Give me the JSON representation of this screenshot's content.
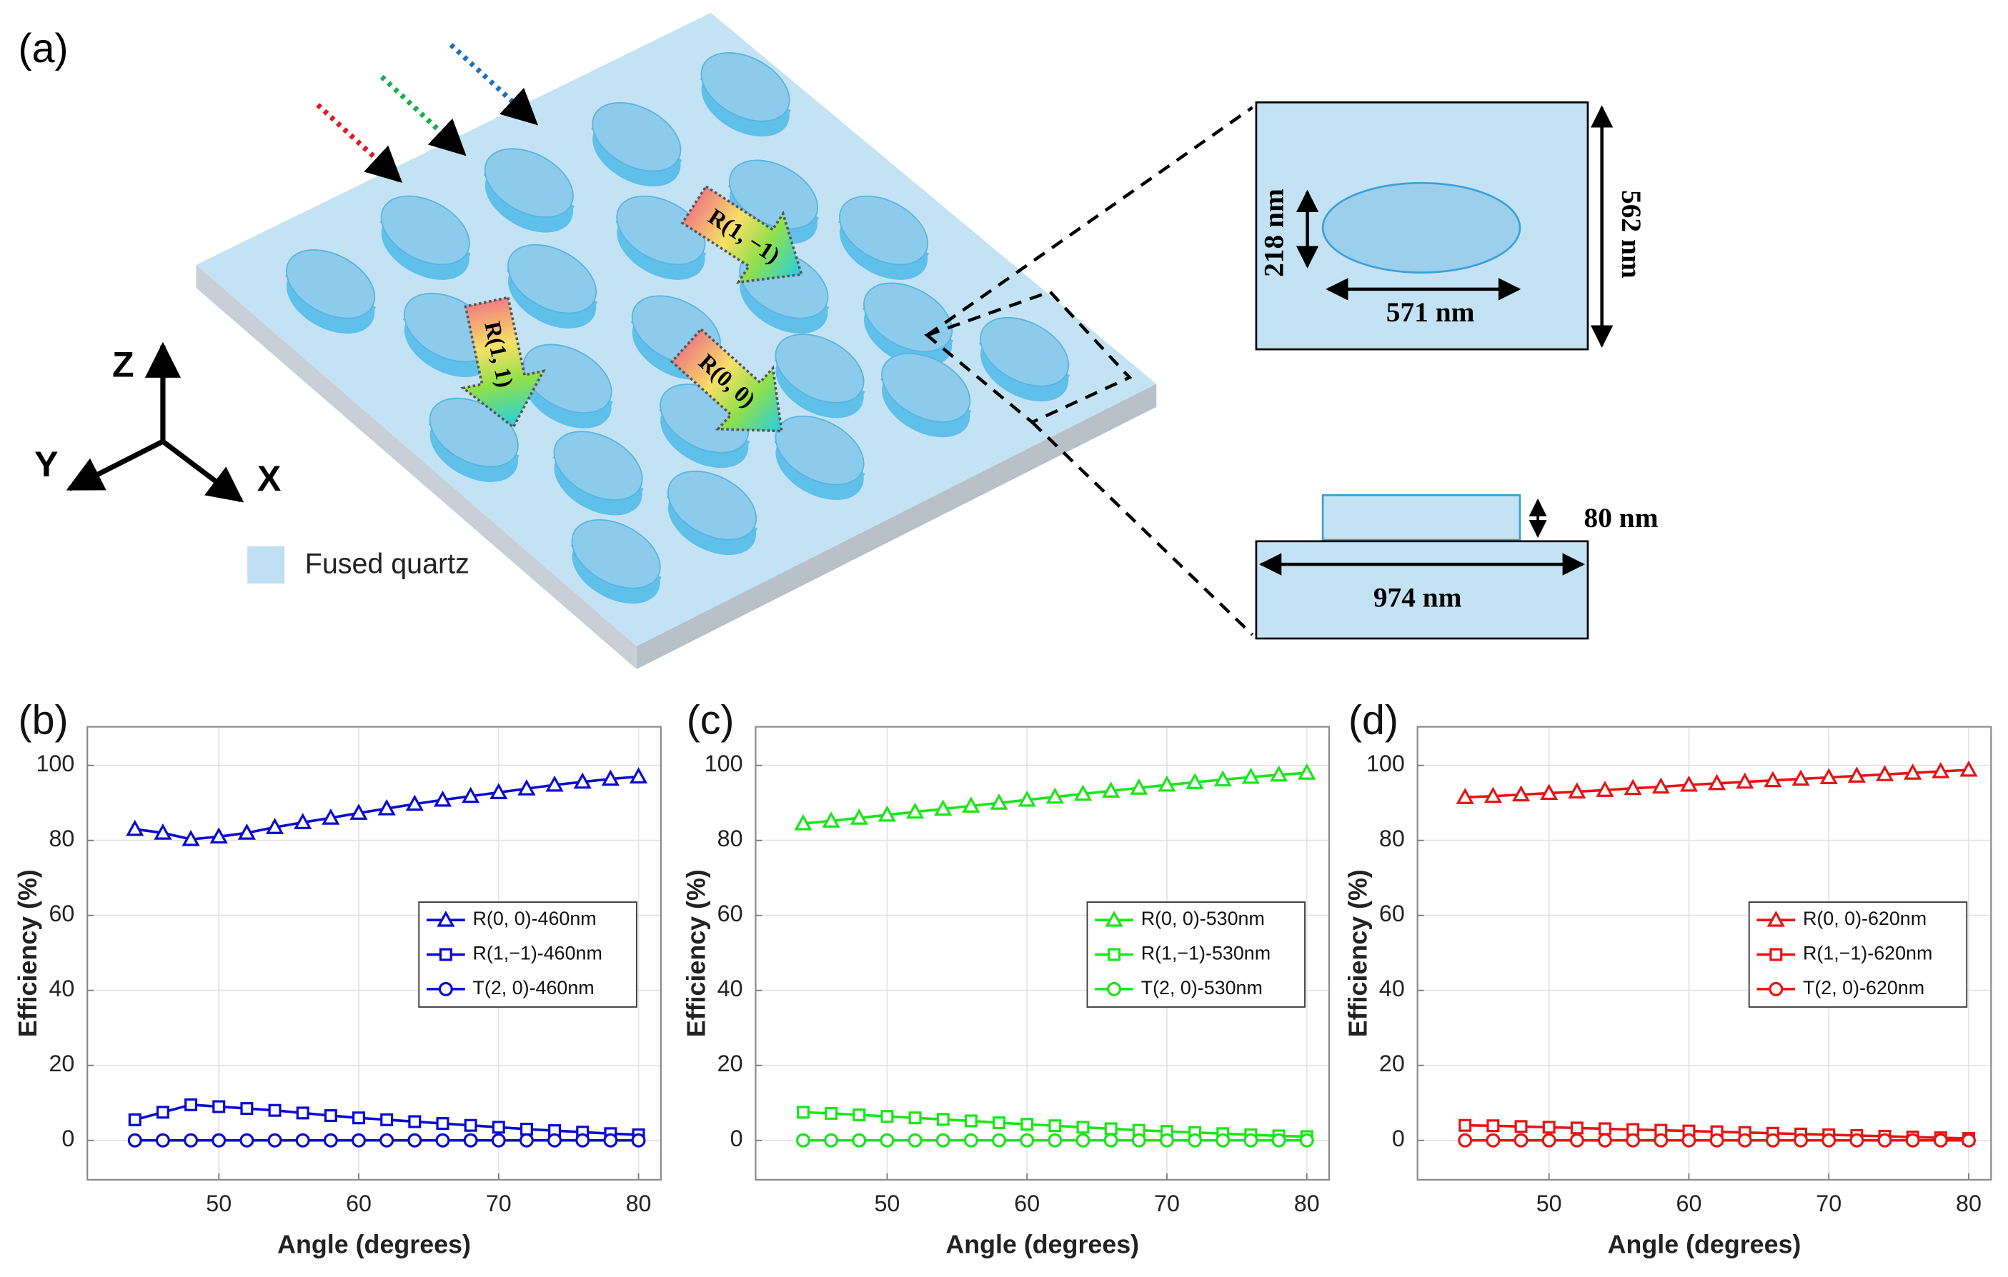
{
  "diagram": {
    "label": "(a)",
    "legend": "Fused quartz",
    "axes": {
      "z": "Z",
      "y": "Y",
      "x": "X"
    },
    "beams": [
      "R(1, −1)",
      "R(1, 1)",
      "R(0, 0)"
    ],
    "dimensions": {
      "height": "218 nm",
      "width": "571 nm",
      "period_y": "562 nm",
      "thickness": "80 nm",
      "period_x": "974 nm"
    }
  },
  "chart_data": [
    {
      "type": "line",
      "label": "(b)",
      "x_label": "Angle (degrees)",
      "y_label": "Efficiency (%)",
      "x": [
        44,
        46,
        48,
        50,
        52,
        54,
        56,
        58,
        60,
        62,
        64,
        66,
        68,
        70,
        72,
        74,
        76,
        78,
        80
      ],
      "series": [
        {
          "name": "R(0, 0)-460nm",
          "color": "#0a0ad2",
          "marker": "triangle",
          "values": [
            83,
            82,
            80.3,
            81,
            82,
            83.5,
            84.8,
            86,
            87.3,
            88.5,
            89.7,
            90.8,
            91.8,
            92.8,
            93.8,
            94.8,
            95.6,
            96.4,
            97
          ]
        },
        {
          "name": "R(1,−1)-460nm",
          "color": "#0a0ad2",
          "marker": "square",
          "values": [
            5.5,
            7.5,
            9.5,
            9,
            8.5,
            8,
            7.3,
            6.6,
            6,
            5.5,
            5,
            4.5,
            4,
            3.5,
            3,
            2.6,
            2.2,
            1.8,
            1.5
          ]
        },
        {
          "name": "T(2, 0)-460nm",
          "color": "#0a0ad2",
          "marker": "circle",
          "values": [
            0,
            0,
            0,
            0,
            0,
            0,
            0,
            0,
            0,
            0,
            0,
            0,
            0,
            0,
            0,
            0,
            0,
            0,
            0
          ]
        }
      ],
      "xlim": [
        40.6,
        81.6
      ],
      "xticks": [
        50,
        60,
        70,
        80
      ],
      "ylim": [
        -10.5,
        110.3
      ],
      "yticks": [
        0,
        20,
        40,
        60,
        80,
        100
      ],
      "grid": true,
      "legend": "east"
    },
    {
      "type": "line",
      "label": "(c)",
      "x_label": "Angle (degrees)",
      "y_label": "Efficiency (%)",
      "x": [
        44,
        46,
        48,
        50,
        52,
        54,
        56,
        58,
        60,
        62,
        64,
        66,
        68,
        70,
        72,
        74,
        76,
        78,
        80
      ],
      "series": [
        {
          "name": "R(0, 0)-530nm",
          "color": "#19e619",
          "marker": "triangle",
          "values": [
            84.5,
            85.2,
            86,
            86.8,
            87.6,
            88.4,
            89.2,
            90,
            90.8,
            91.6,
            92.4,
            93.2,
            94,
            94.8,
            95.5,
            96.2,
            96.9,
            97.5,
            98
          ]
        },
        {
          "name": "R(1,−1)-530nm",
          "color": "#19e619",
          "marker": "square",
          "values": [
            7.5,
            7.2,
            6.8,
            6.4,
            6,
            5.6,
            5.2,
            4.7,
            4.3,
            3.9,
            3.5,
            3.1,
            2.7,
            2.4,
            2.1,
            1.8,
            1.5,
            1.2,
            1
          ]
        },
        {
          "name": "T(2, 0)-530nm",
          "color": "#19e619",
          "marker": "circle",
          "values": [
            0,
            0,
            0,
            0,
            0,
            0,
            0,
            0,
            0,
            0,
            0,
            0,
            0,
            0,
            0,
            0,
            0,
            0,
            0
          ]
        }
      ],
      "xlim": [
        40.6,
        81.6
      ],
      "xticks": [
        50,
        60,
        70,
        80
      ],
      "ylim": [
        -10.5,
        110.3
      ],
      "yticks": [
        0,
        20,
        40,
        60,
        80,
        100
      ],
      "grid": true,
      "legend": "east"
    },
    {
      "type": "line",
      "label": "(d)",
      "x_label": "Angle (degrees)",
      "y_label": "Efficiency (%)",
      "x": [
        44,
        46,
        48,
        50,
        52,
        54,
        56,
        58,
        60,
        62,
        64,
        66,
        68,
        70,
        72,
        74,
        76,
        78,
        80
      ],
      "series": [
        {
          "name": "R(0, 0)-620nm",
          "color": "#e61414",
          "marker": "triangle",
          "values": [
            91.5,
            91.8,
            92.2,
            92.6,
            93,
            93.4,
            93.9,
            94.3,
            94.8,
            95.2,
            95.6,
            96,
            96.4,
            96.8,
            97.2,
            97.6,
            98,
            98.4,
            98.8
          ]
        },
        {
          "name": "R(1,−1)-620nm",
          "color": "#e61414",
          "marker": "square",
          "values": [
            4,
            3.9,
            3.7,
            3.5,
            3.3,
            3.1,
            2.9,
            2.7,
            2.5,
            2.3,
            2.1,
            1.9,
            1.7,
            1.5,
            1.3,
            1.1,
            0.9,
            0.7,
            0.5
          ]
        },
        {
          "name": "T(2, 0)-620nm",
          "color": "#e61414",
          "marker": "circle",
          "values": [
            0,
            0,
            0,
            0,
            0,
            0,
            0,
            0,
            0,
            0,
            0,
            0,
            0,
            0,
            0,
            0,
            0,
            0,
            0
          ]
        }
      ],
      "xlim": [
        40.6,
        81.6
      ],
      "xticks": [
        50,
        60,
        70,
        80
      ],
      "ylim": [
        -10.5,
        110.3
      ],
      "yticks": [
        0,
        20,
        40,
        60,
        80,
        100
      ],
      "grid": true,
      "legend": "east"
    }
  ]
}
